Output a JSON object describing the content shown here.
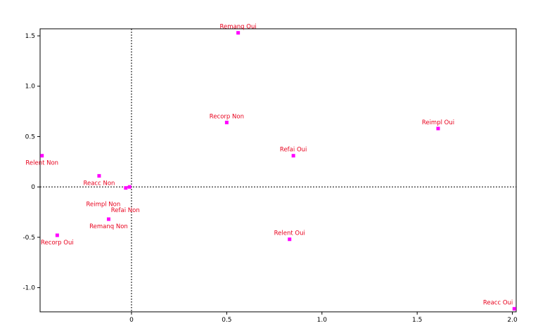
{
  "chart_data": {
    "type": "scatter",
    "title": "",
    "xlabel": "",
    "ylabel": "",
    "xlim": [
      -0.48,
      2.02
    ],
    "ylim": [
      -1.24,
      1.57
    ],
    "xticks": [
      0,
      0.5,
      1.0,
      1.5,
      2.0
    ],
    "xtick_labels": [
      "0",
      "0.5",
      "1.0",
      "1.5",
      "2.0"
    ],
    "yticks": [
      -1.0,
      -0.5,
      0,
      0.5,
      1.0,
      1.5
    ],
    "ytick_labels": [
      "-1.0",
      "-0.5",
      "0",
      "0.5",
      "1.0",
      "1.5"
    ],
    "reference_lines": {
      "x": 0,
      "y": 0,
      "style": "dotted"
    },
    "grid": false,
    "legend": "none",
    "marker_color": "#ff00ff",
    "label_color": "#e8001c",
    "points": [
      {
        "label": "Remanq Oui",
        "x": 0.56,
        "y": 1.53,
        "label_pos": "above"
      },
      {
        "label": "Recorp Non",
        "x": 0.5,
        "y": 0.64,
        "label_pos": "above"
      },
      {
        "label": "Reimpl Oui",
        "x": 1.61,
        "y": 0.58,
        "label_pos": "above"
      },
      {
        "label": "Refai Oui",
        "x": 0.85,
        "y": 0.31,
        "label_pos": "above"
      },
      {
        "label": "Relent Non",
        "x": -0.47,
        "y": 0.31,
        "label_pos": "below"
      },
      {
        "label": "Reacc Non",
        "x": -0.17,
        "y": 0.11,
        "label_pos": "below"
      },
      {
        "label": "Reimpl Non",
        "x": -0.03,
        "y": -0.01,
        "label_pos": "below-far"
      },
      {
        "label": "Refai Non",
        "x": -0.01,
        "y": 0.0,
        "label_pos": "below-far2"
      },
      {
        "label": "Remanq Non",
        "x": -0.12,
        "y": -0.32,
        "label_pos": "below"
      },
      {
        "label": "Recorp Oui",
        "x": -0.39,
        "y": -0.48,
        "label_pos": "below"
      },
      {
        "label": "Relent Oui",
        "x": 0.83,
        "y": -0.52,
        "label_pos": "above"
      },
      {
        "label": "Reacc Oui",
        "x": 2.01,
        "y": -1.21,
        "label_pos": "above-left"
      }
    ]
  }
}
